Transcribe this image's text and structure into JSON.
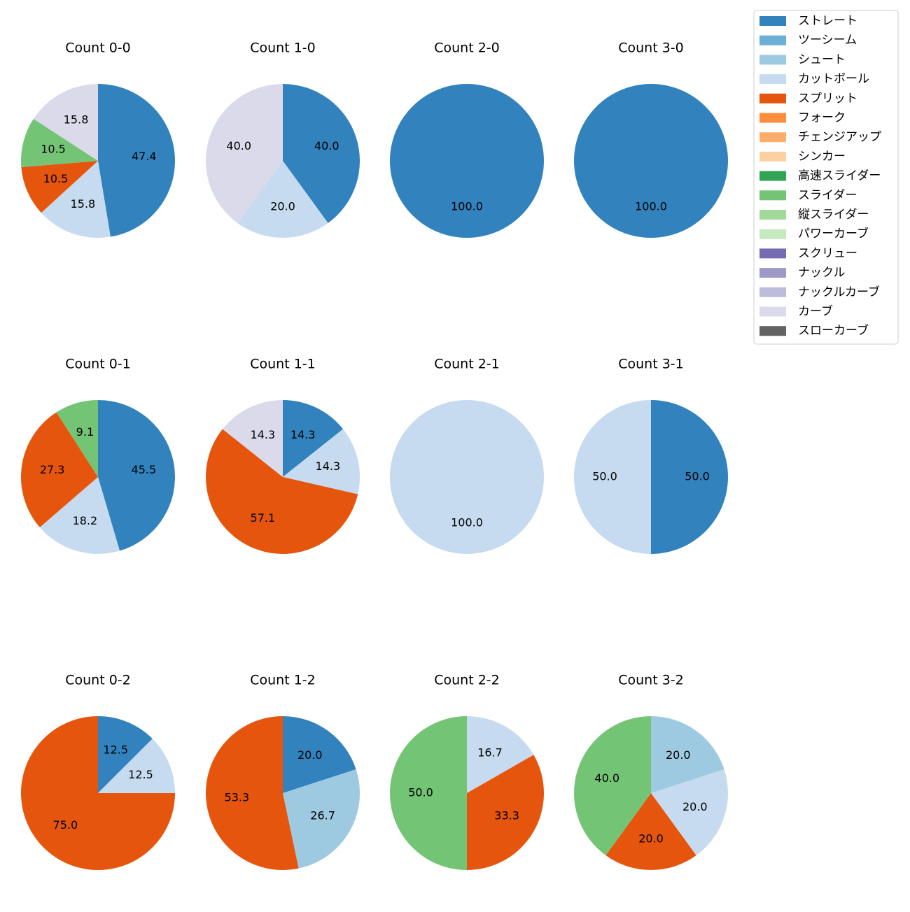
{
  "chart_data": [
    {
      "type": "pie",
      "title": "Count 0-0",
      "categories": [
        "ストレート",
        "カットボール",
        "スプリット",
        "スライダー",
        "カーブ"
      ],
      "values": [
        47.4,
        15.8,
        10.5,
        10.5,
        15.8
      ],
      "value_labels": [
        "47.4",
        "15.8",
        "10.5",
        "10.5",
        "15.8"
      ]
    },
    {
      "type": "pie",
      "title": "Count 1-0",
      "categories": [
        "ストレート",
        "カットボール",
        "カーブ"
      ],
      "values": [
        40,
        20,
        40
      ],
      "value_labels": [
        "40.0",
        "20.0",
        "40.0"
      ]
    },
    {
      "type": "pie",
      "title": "Count 2-0",
      "categories": [
        "ストレート"
      ],
      "values": [
        100
      ],
      "value_labels": [
        "100.0"
      ]
    },
    {
      "type": "pie",
      "title": "Count 3-0",
      "categories": [
        "ストレート"
      ],
      "values": [
        100
      ],
      "value_labels": [
        "100.0"
      ]
    },
    {
      "type": "pie",
      "title": "Count 0-1",
      "categories": [
        "ストレート",
        "カットボール",
        "スプリット",
        "スライダー"
      ],
      "values": [
        45.5,
        18.2,
        27.3,
        9.1
      ],
      "value_labels": [
        "45.5",
        "18.2",
        "27.3",
        "9.1"
      ]
    },
    {
      "type": "pie",
      "title": "Count 1-1",
      "categories": [
        "ストレート",
        "カットボール",
        "スプリット",
        "カーブ"
      ],
      "values": [
        14.3,
        14.3,
        57.1,
        14.3
      ],
      "value_labels": [
        "14.3",
        "14.3",
        "57.1",
        "14.3"
      ]
    },
    {
      "type": "pie",
      "title": "Count 2-1",
      "categories": [
        "カットボール"
      ],
      "values": [
        100
      ],
      "value_labels": [
        "100.0"
      ]
    },
    {
      "type": "pie",
      "title": "Count 3-1",
      "categories": [
        "ストレート",
        "カットボール"
      ],
      "values": [
        50,
        50
      ],
      "value_labels": [
        "50.0",
        "50.0"
      ]
    },
    {
      "type": "pie",
      "title": "Count 0-2",
      "categories": [
        "ストレート",
        "カットボール",
        "スプリット"
      ],
      "values": [
        12.5,
        12.5,
        75
      ],
      "value_labels": [
        "12.5",
        "12.5",
        "75.0"
      ]
    },
    {
      "type": "pie",
      "title": "Count 1-2",
      "categories": [
        "ストレート",
        "シュート",
        "スプリット"
      ],
      "values": [
        20,
        26.7,
        53.3
      ],
      "value_labels": [
        "20.0",
        "26.7",
        "53.3"
      ]
    },
    {
      "type": "pie",
      "title": "Count 2-2",
      "categories": [
        "カットボール",
        "スプリット",
        "スライダー"
      ],
      "values": [
        16.7,
        33.3,
        50
      ],
      "value_labels": [
        "16.7",
        "33.3",
        "50.0"
      ]
    },
    {
      "type": "pie",
      "title": "Count 3-2",
      "categories": [
        "シュート",
        "カットボール",
        "スプリット",
        "スライダー"
      ],
      "values": [
        20,
        20,
        20,
        40
      ],
      "value_labels": [
        "20.0",
        "20.0",
        "20.0",
        "40.0"
      ]
    }
  ],
  "legend": {
    "position": "upper right",
    "items": [
      {
        "name": "ストレート",
        "color": "#3182bd"
      },
      {
        "name": "ツーシーム",
        "color": "#6baed6"
      },
      {
        "name": "シュート",
        "color": "#9ecae1"
      },
      {
        "name": "カットボール",
        "color": "#c6dbef"
      },
      {
        "name": "スプリット",
        "color": "#e6550d"
      },
      {
        "name": "フォーク",
        "color": "#fd8d3c"
      },
      {
        "name": "チェンジアップ",
        "color": "#fdae6b"
      },
      {
        "name": "シンカー",
        "color": "#fdd0a2"
      },
      {
        "name": "高速スライダー",
        "color": "#31a354"
      },
      {
        "name": "スライダー",
        "color": "#74c476"
      },
      {
        "name": "縦スライダー",
        "color": "#a1d99b"
      },
      {
        "name": "パワーカーブ",
        "color": "#c7e9c0"
      },
      {
        "name": "スクリュー",
        "color": "#756bb1"
      },
      {
        "name": "ナックル",
        "color": "#9e9ac8"
      },
      {
        "name": "ナックルカーブ",
        "color": "#bcbddc"
      },
      {
        "name": "カーブ",
        "color": "#dadaeb"
      },
      {
        "name": "スローカーブ",
        "color": "#636363"
      }
    ]
  }
}
